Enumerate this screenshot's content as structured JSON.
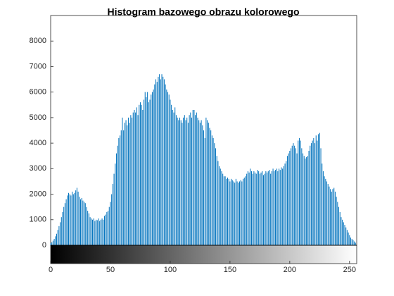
{
  "chart_data": {
    "type": "histogram",
    "title": "Histogram bazowego obrazu kolorowego",
    "color": "#0072bd",
    "xlim": [
      0,
      256
    ],
    "xticks": [
      0,
      50,
      100,
      150,
      200,
      250
    ],
    "ylim": [
      0,
      9000
    ],
    "yticks": [
      0,
      1000,
      2000,
      3000,
      4000,
      5000,
      6000,
      7000,
      8000
    ],
    "grid": false,
    "values": [
      80,
      120,
      180,
      250,
      350,
      450,
      600,
      750,
      900,
      1100,
      1300,
      1500,
      1650,
      1800,
      1950,
      2050,
      2000,
      1950,
      2100,
      2000,
      2050,
      2150,
      2250,
      2100,
      1900,
      1800,
      1850,
      1750,
      1700,
      1650,
      1500,
      1350,
      1250,
      1100,
      1050,
      1000,
      1050,
      950,
      1000,
      980,
      1050,
      950,
      1000,
      1050,
      1000,
      1150,
      1200,
      1300,
      1350,
      1500,
      1700,
      2000,
      2400,
      2800,
      3200,
      3600,
      3900,
      4200,
      4300,
      4500,
      5000,
      4500,
      4800,
      4900,
      4700,
      5000,
      4800,
      5100,
      5000,
      5200,
      5300,
      5200,
      5400,
      5100,
      5500,
      5600,
      5500,
      5300,
      5700,
      6000,
      5800,
      6000,
      5600,
      5700,
      5900,
      6000,
      6100,
      6300,
      6500,
      6400,
      6600,
      6700,
      6500,
      6700,
      6600,
      6500,
      6300,
      6100,
      6000,
      5900,
      5700,
      5500,
      5300,
      5200,
      5400,
      5100,
      5000,
      4900,
      5000,
      4900,
      4800,
      5000,
      5100,
      4900,
      5000,
      4800,
      5100,
      5200,
      5000,
      5300,
      5300,
      5100,
      5200,
      5000,
      4900,
      4800,
      4900,
      4700,
      4500,
      4200,
      5000,
      4900,
      4800,
      4600,
      4500,
      4300,
      4200,
      4000,
      3800,
      3500,
      3300,
      3100,
      3000,
      2900,
      2800,
      2700,
      2700,
      2600,
      2650,
      2600,
      2500,
      2600,
      2550,
      2500,
      2450,
      2600,
      2500,
      2450,
      2500,
      2550,
      2500,
      2600,
      2650,
      2700,
      2800,
      2900,
      2850,
      3000,
      2900,
      2800,
      2900,
      2850,
      2800,
      2950,
      2900,
      2800,
      2850,
      2900,
      2750,
      2800,
      2900,
      2850,
      2900,
      2950,
      2800,
      2900,
      3000,
      2900,
      2950,
      3000,
      2900,
      3000,
      2950,
      3050,
      3000,
      3100,
      3200,
      3300,
      3500,
      3600,
      3700,
      3800,
      3900,
      4000,
      3900,
      3800,
      3600,
      4100,
      4200,
      4100,
      3800,
      3600,
      3500,
      3400,
      3450,
      3500,
      3700,
      3900,
      4000,
      4100,
      4200,
      4000,
      4300,
      4100,
      4350,
      4400,
      3800,
      3200,
      2900,
      2700,
      2600,
      2500,
      2400,
      2300,
      2200,
      2100,
      2200,
      2250,
      2100,
      1900,
      1700,
      1500,
      1300,
      1100,
      1000,
      900,
      800,
      700,
      600,
      500,
      400,
      300,
      250,
      200,
      150,
      100
    ]
  }
}
